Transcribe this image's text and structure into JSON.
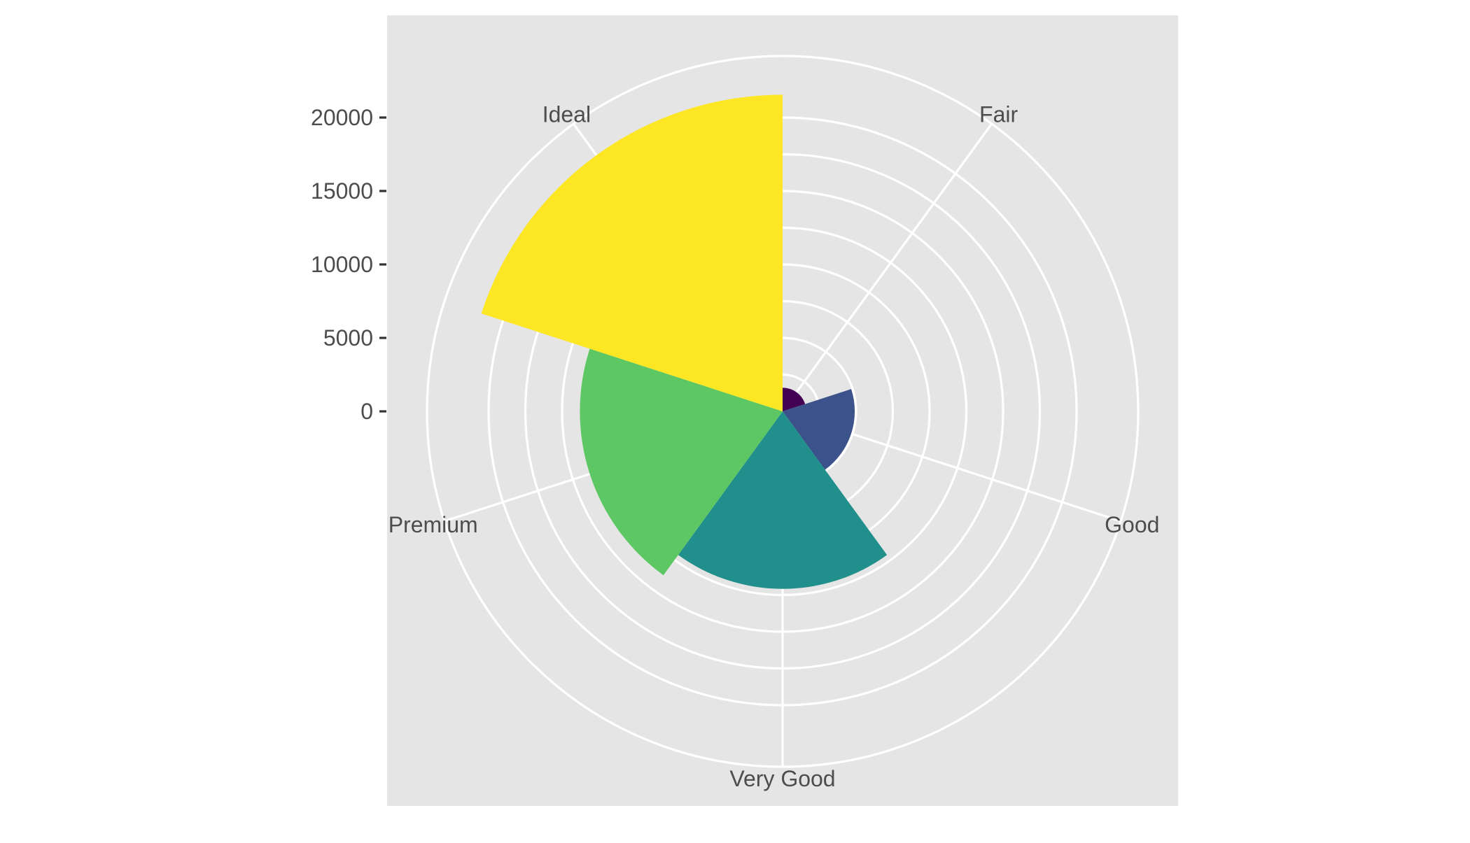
{
  "chart_data": {
    "type": "bar",
    "coord": "polar",
    "categories": [
      "Fair",
      "Good",
      "Very Good",
      "Premium",
      "Ideal"
    ],
    "values": [
      1610,
      4906,
      12082,
      13791,
      21551
    ],
    "colors": [
      "#440154",
      "#3b528b",
      "#21908c",
      "#5dc863",
      "#fde725"
    ],
    "radial_ticks": [
      0,
      5000,
      10000,
      15000,
      20000
    ],
    "radial_tick_labels": [
      "0",
      "5000",
      "10000",
      "15000",
      "20000"
    ],
    "ylim": [
      0,
      24000
    ],
    "grid": true,
    "background": "#e5e5e5",
    "grid_color": "#ffffff",
    "legend": "none",
    "title": "",
    "xlabel": "",
    "ylabel": ""
  }
}
